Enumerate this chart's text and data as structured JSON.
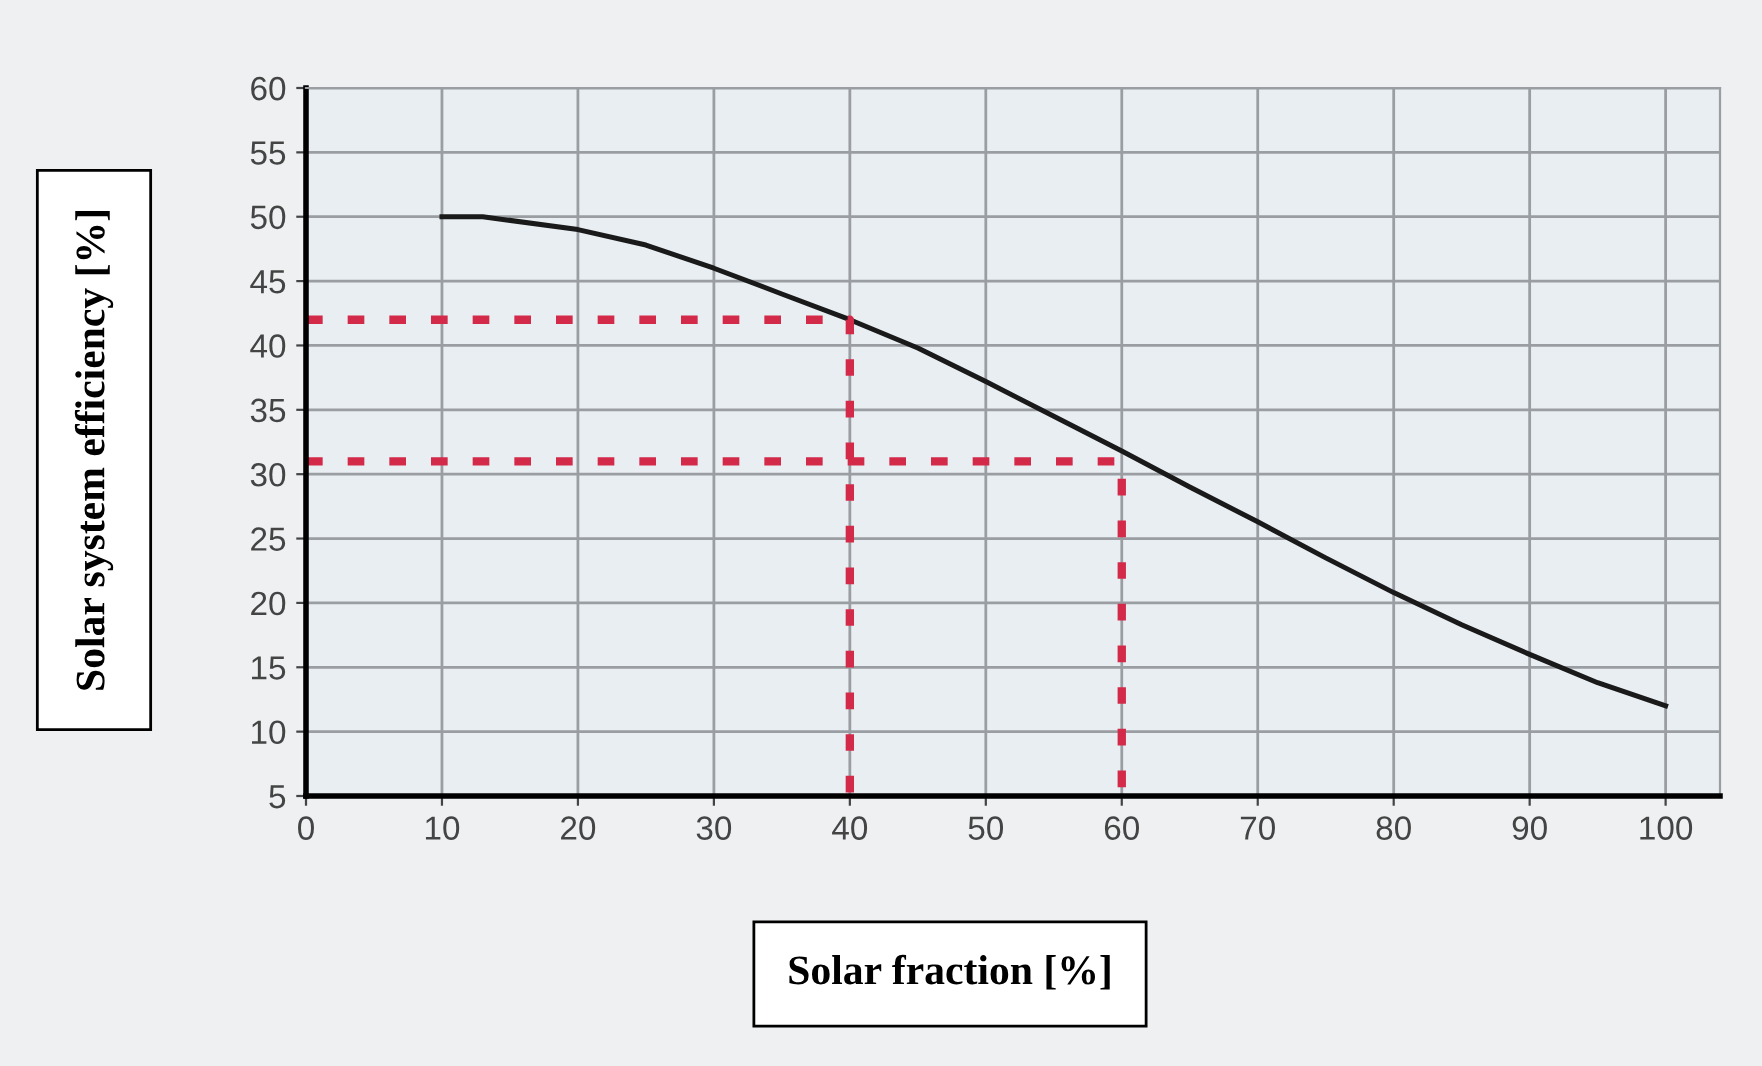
{
  "chart_data": {
    "type": "line",
    "xlabel": "Solar fraction [%]",
    "ylabel": "Solar system efficiency [%]",
    "xlim": [
      0,
      104
    ],
    "ylim": [
      5,
      60
    ],
    "xticks": [
      0,
      10,
      20,
      30,
      40,
      50,
      60,
      70,
      80,
      90,
      100
    ],
    "yticks": [
      5,
      10,
      15,
      20,
      25,
      30,
      35,
      40,
      45,
      50,
      55,
      60
    ],
    "grid": true,
    "series": [
      {
        "color": "#1a1a1a",
        "line_style": "solid",
        "x": [
          10,
          13,
          20,
          25,
          30,
          35,
          40,
          45,
          50,
          55,
          60,
          65,
          70,
          75,
          80,
          85,
          90,
          95,
          100
        ],
        "values": [
          50,
          50,
          49,
          47.8,
          46,
          44,
          42,
          39.8,
          37.2,
          34.5,
          31.8,
          29,
          26.3,
          23.5,
          20.8,
          18.3,
          16,
          13.8,
          12
        ]
      },
      {
        "color": "#d42a4a",
        "line_style": "dashed",
        "x": [
          0,
          40,
          40
        ],
        "values": [
          42,
          42,
          5
        ]
      },
      {
        "color": "#d42a4a",
        "line_style": "dashed",
        "x": [
          0,
          60,
          60
        ],
        "values": [
          31,
          31,
          5
        ]
      }
    ]
  }
}
